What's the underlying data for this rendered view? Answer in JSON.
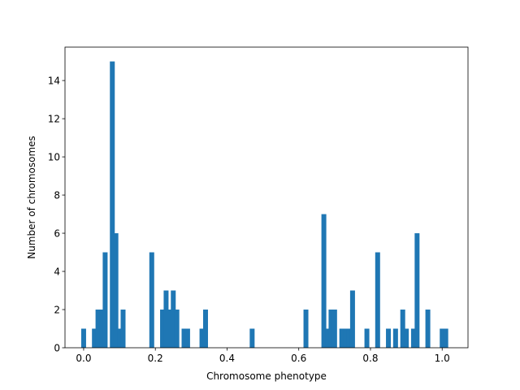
{
  "chart_data": {
    "type": "bar",
    "title": "",
    "xlabel": "Chromosome phenotype",
    "ylabel": "Number of chromosomes",
    "xlim": [
      -0.052,
      1.072
    ],
    "ylim": [
      0,
      15.75
    ],
    "xticks": [
      0.0,
      0.2,
      0.4,
      0.6,
      0.8,
      1.0
    ],
    "xtick_labels": [
      "0.0",
      "0.2",
      "0.4",
      "0.6",
      "0.8",
      "1.0"
    ],
    "yticks": [
      0,
      2,
      4,
      6,
      8,
      10,
      12,
      14
    ],
    "ytick_labels": [
      "0",
      "2",
      "4",
      "6",
      "8",
      "10",
      "12",
      "14"
    ],
    "bar_width": 0.008,
    "color": "#1f77b4",
    "grid": false,
    "legend": "none",
    "x": [
      0.0,
      0.03,
      0.04,
      0.05,
      0.06,
      0.08,
      0.09,
      0.1,
      0.11,
      0.19,
      0.22,
      0.23,
      0.24,
      0.25,
      0.26,
      0.28,
      0.29,
      0.33,
      0.34,
      0.47,
      0.62,
      0.67,
      0.68,
      0.69,
      0.7,
      0.72,
      0.73,
      0.74,
      0.75,
      0.79,
      0.82,
      0.85,
      0.87,
      0.89,
      0.9,
      0.92,
      0.93,
      0.96,
      1.0,
      1.01
    ],
    "values": [
      1,
      1,
      2,
      2,
      5,
      15,
      6,
      1,
      2,
      5,
      2,
      3,
      2,
      3,
      2,
      1,
      1,
      1,
      2,
      1,
      2,
      7,
      1,
      2,
      2,
      1,
      1,
      1,
      3,
      1,
      5,
      1,
      1,
      2,
      1,
      1,
      6,
      2,
      1,
      1
    ]
  }
}
